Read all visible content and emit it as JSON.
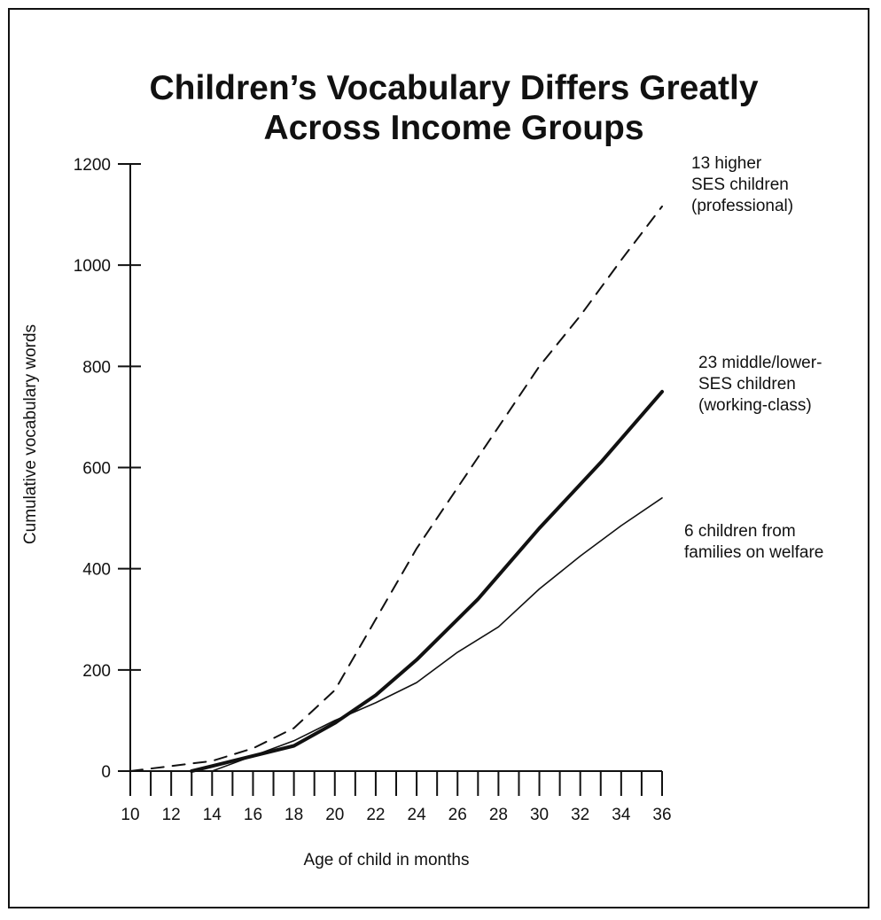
{
  "chart_data": {
    "type": "line",
    "title_lines": [
      "Children’s Vocabulary Differs Greatly",
      "Across Income Groups"
    ],
    "xlabel": "Age of child in months",
    "ylabel": "Cumulative vocabulary words",
    "xlim": [
      10,
      36
    ],
    "ylim": [
      0,
      1200
    ],
    "x_ticks": [
      10,
      12,
      14,
      16,
      18,
      20,
      22,
      24,
      26,
      28,
      30,
      32,
      34,
      36
    ],
    "y_ticks": [
      0,
      200,
      400,
      600,
      800,
      1000,
      1200
    ],
    "grid": false,
    "series": [
      {
        "name_lines": [
          "13 higher",
          "SES children",
          "(professional)"
        ],
        "style": "dashed",
        "points": [
          [
            10,
            0
          ],
          [
            12,
            10
          ],
          [
            14,
            20
          ],
          [
            16,
            45
          ],
          [
            18,
            85
          ],
          [
            20,
            160
          ],
          [
            22,
            300
          ],
          [
            24,
            440
          ],
          [
            26,
            560
          ],
          [
            28,
            680
          ],
          [
            30,
            800
          ],
          [
            32,
            900
          ],
          [
            34,
            1010
          ],
          [
            36,
            1116
          ]
        ]
      },
      {
        "name_lines": [
          "23 middle/lower-",
          "SES children",
          "(working-class)"
        ],
        "style": "bold",
        "points": [
          [
            13,
            0
          ],
          [
            15,
            20
          ],
          [
            18,
            50
          ],
          [
            20,
            95
          ],
          [
            22,
            150
          ],
          [
            24,
            220
          ],
          [
            27,
            340
          ],
          [
            30,
            480
          ],
          [
            33,
            610
          ],
          [
            36,
            750
          ]
        ]
      },
      {
        "name_lines": [
          "6 children from",
          "families on welfare"
        ],
        "style": "thin",
        "points": [
          [
            14,
            0
          ],
          [
            16,
            30
          ],
          [
            18,
            60
          ],
          [
            20,
            100
          ],
          [
            22,
            135
          ],
          [
            24,
            175
          ],
          [
            26,
            235
          ],
          [
            28,
            285
          ],
          [
            30,
            360
          ],
          [
            32,
            425
          ],
          [
            34,
            485
          ],
          [
            36,
            540
          ]
        ]
      }
    ]
  }
}
